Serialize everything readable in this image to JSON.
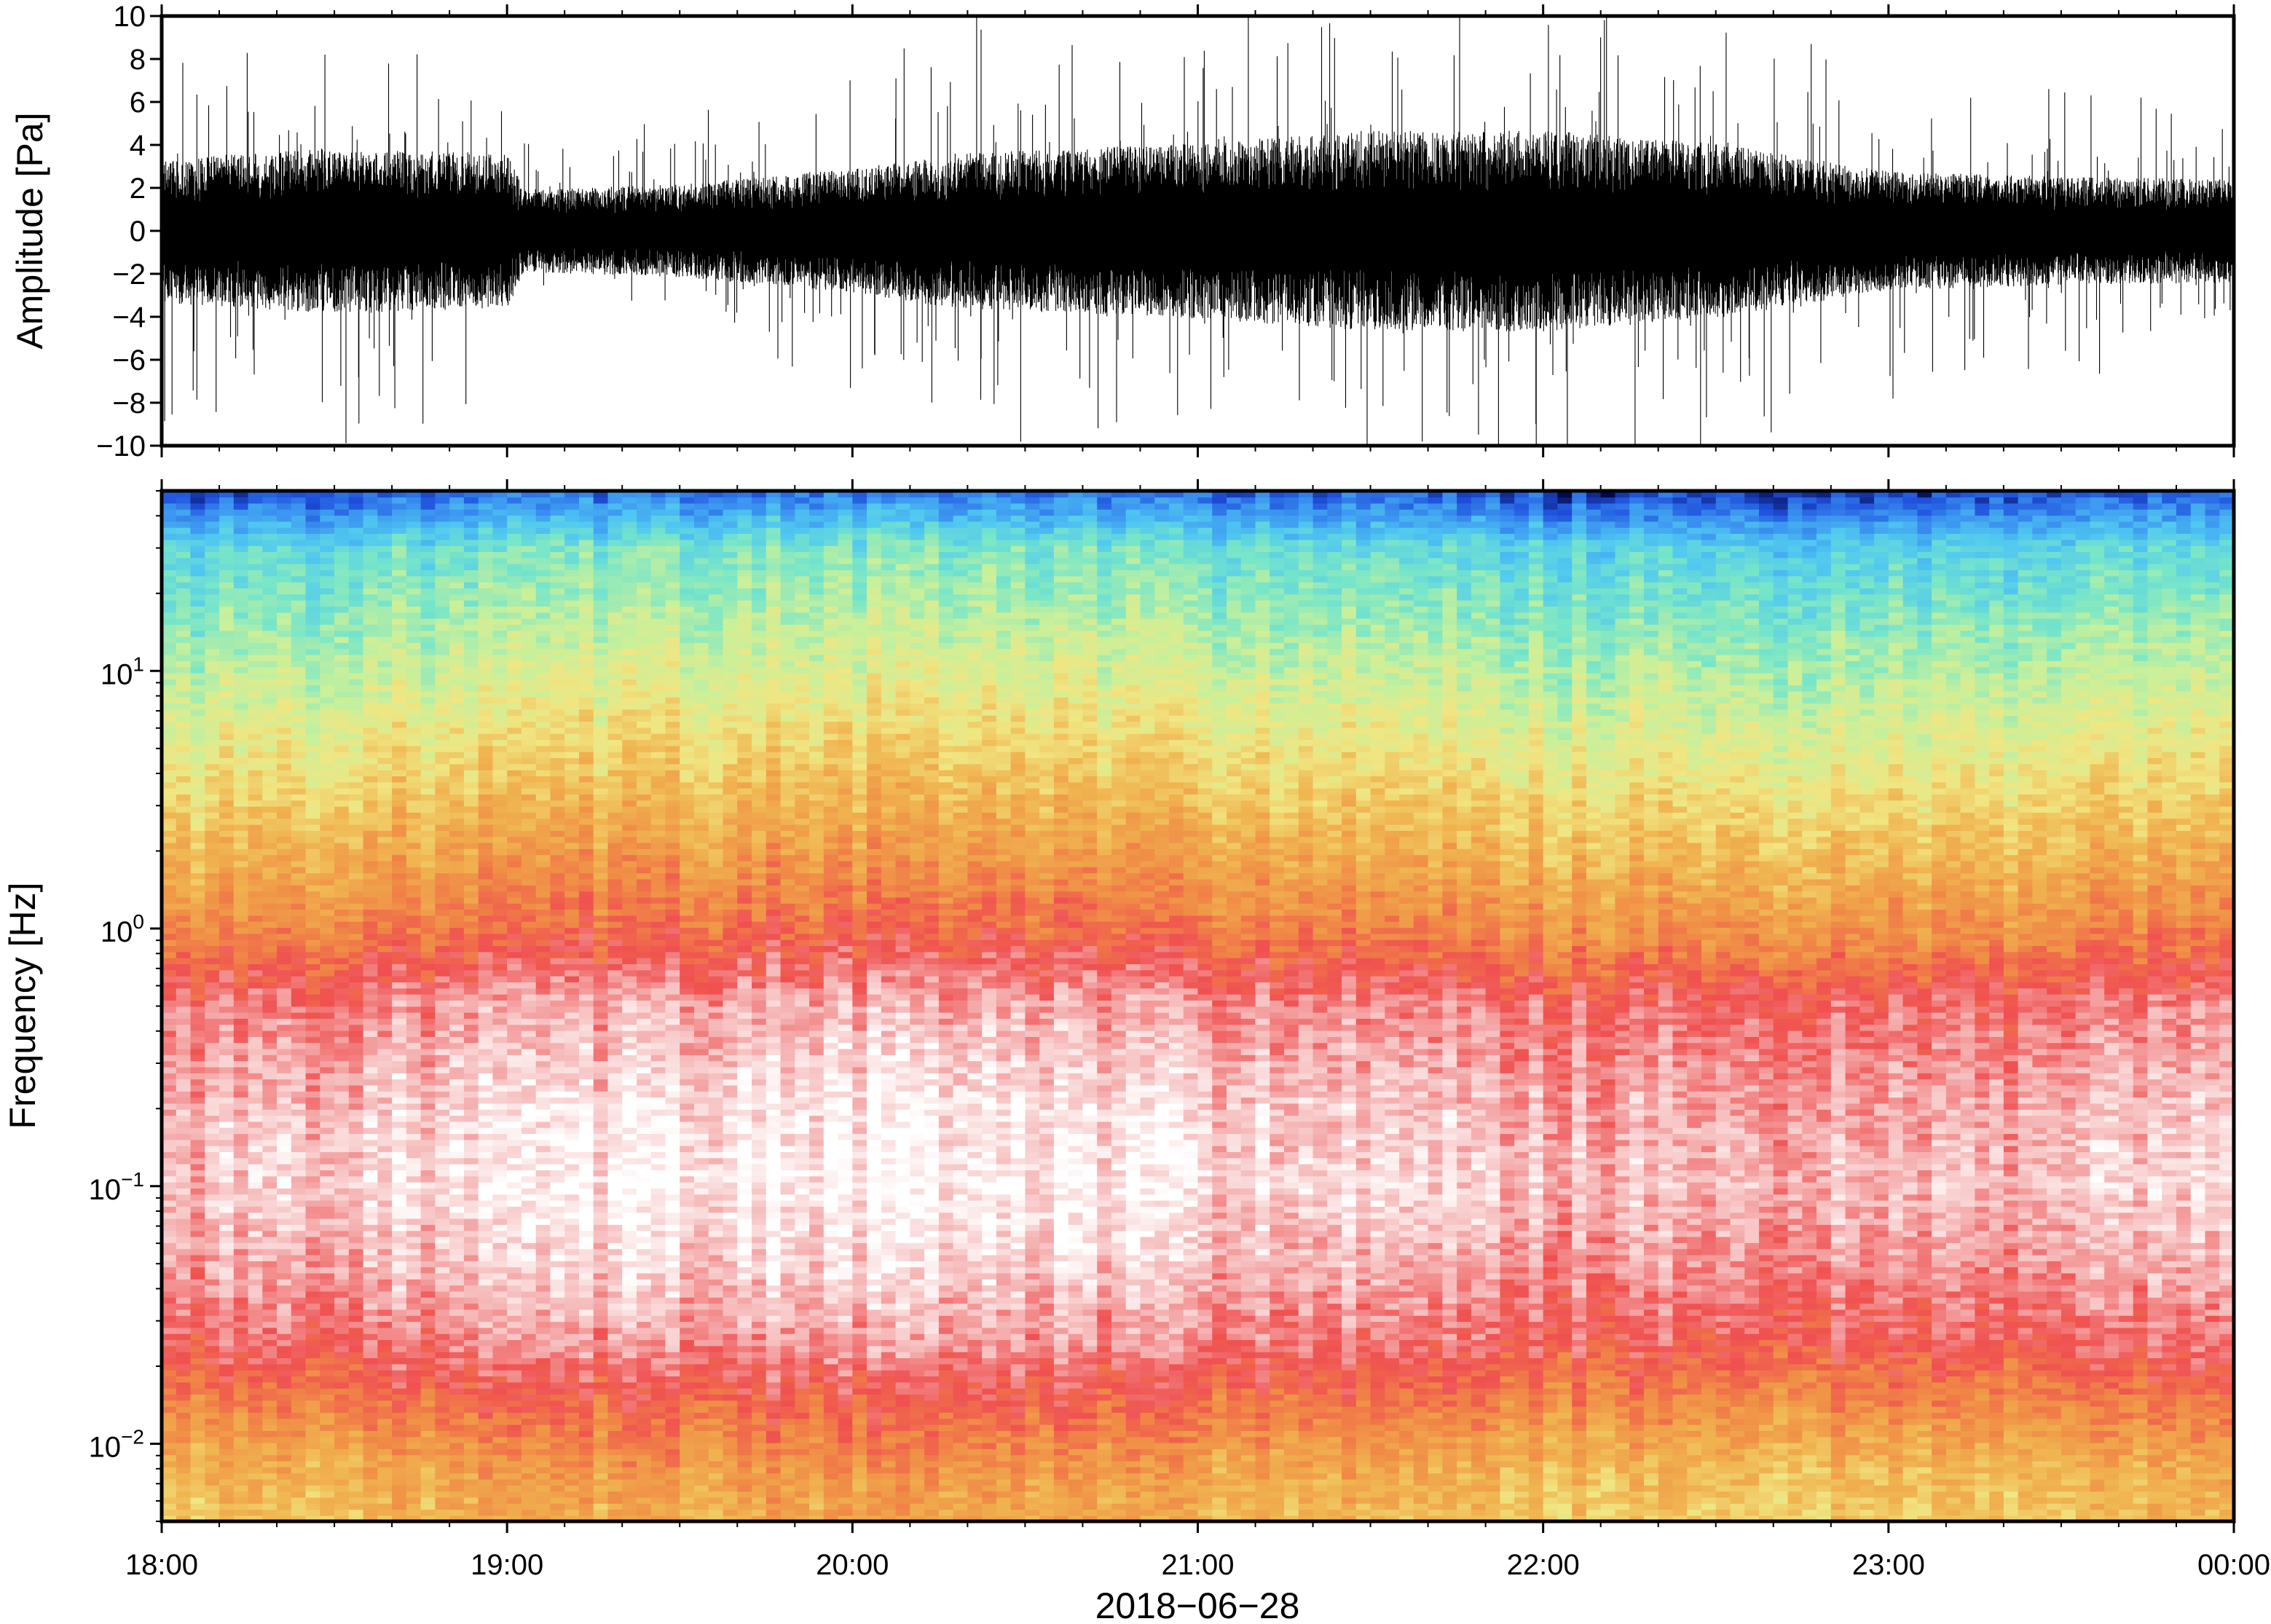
{
  "chart_data": [
    {
      "type": "line",
      "ylabel": "Amplitude [Pa]",
      "ylim": [
        -10,
        10
      ],
      "yticks": [
        10,
        8,
        6,
        4,
        2,
        0,
        -2,
        -4,
        -6,
        -8,
        -10
      ],
      "ytick_labels": [
        "10",
        "8",
        "6",
        "4",
        "2",
        "0",
        "−2",
        "−4",
        "−6",
        "−8",
        "−10"
      ],
      "x_range": [
        "18:00",
        "00:00"
      ],
      "series_color": "#000000",
      "envelope_hours": [
        0,
        0.5,
        1.0,
        1.05,
        1.5,
        2.0,
        2.3,
        3.0,
        3.5,
        4.0,
        4.5,
        5.0,
        5.5,
        6.0
      ],
      "envelope_amp_pa": [
        2.8,
        3.2,
        3.0,
        1.6,
        1.8,
        2.4,
        3.0,
        3.4,
        3.9,
        3.9,
        3.4,
        2.3,
        2.1,
        2.0
      ]
    },
    {
      "type": "heatmap",
      "ylabel": "Frequency [Hz]",
      "yscale": "log",
      "ylim_hz": [
        0.005,
        50
      ],
      "yticks_hz": [
        10,
        1,
        0.1,
        0.01
      ],
      "ytick_mantissa": [
        "10",
        "10",
        "10",
        "10"
      ],
      "ytick_exponent": [
        "1",
        "0",
        "−1",
        "−2"
      ],
      "xlabel": "2018−06−28",
      "xtick_labels": [
        "18:00",
        "19:00",
        "20:00",
        "21:00",
        "22:00",
        "23:00",
        "00:00"
      ],
      "colormap": [
        "#00003c",
        "#1e50dc",
        "#3c96f0",
        "#50c8f0",
        "#78e6c8",
        "#c8f09b",
        "#f0e682",
        "#f0b450",
        "#f08c46",
        "#f05050",
        "#f5b4b4",
        "#ffffff"
      ],
      "profile_freq_hz": [
        0.005,
        0.008,
        0.015,
        0.025,
        0.05,
        0.1,
        0.2,
        0.5,
        1,
        3,
        10,
        30,
        50
      ],
      "profile_level": [
        0.62,
        0.66,
        0.76,
        0.85,
        0.91,
        0.95,
        0.93,
        0.87,
        0.74,
        0.6,
        0.46,
        0.33,
        0.1
      ]
    }
  ]
}
